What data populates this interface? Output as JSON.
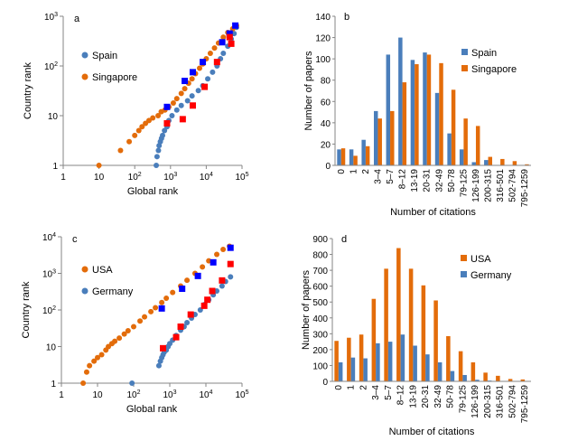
{
  "colors": {
    "blue": "#4a7ebb",
    "orange": "#e36c0a",
    "marker_blue": "#0000ff",
    "marker_red": "#ff0000",
    "axis": "#868686",
    "grid": "#d9d9d9"
  },
  "chart_data": [
    {
      "id": "a",
      "panel_label": "a",
      "type": "scatter",
      "scale": "log-log",
      "xlabel": "Global rank",
      "ylabel": "Country rank",
      "xlim": [
        1,
        100000
      ],
      "ylim": [
        1,
        1000
      ],
      "x_ticks": [
        {
          "v": 1,
          "b": "1",
          "e": ""
        },
        {
          "v": 10,
          "b": "10",
          "e": ""
        },
        {
          "v": 100,
          "b": "10",
          "e": "2"
        },
        {
          "v": 1000,
          "b": "10",
          "e": "3"
        },
        {
          "v": 10000,
          "b": "10",
          "e": "4"
        },
        {
          "v": 100000,
          "b": "10",
          "e": "5"
        }
      ],
      "y_ticks": [
        {
          "v": 1,
          "b": "1",
          "e": ""
        },
        {
          "v": 10,
          "b": "10",
          "e": ""
        },
        {
          "v": 100,
          "b": "10",
          "e": "2"
        },
        {
          "v": 1000,
          "b": "10",
          "e": "3"
        }
      ],
      "legend": "left",
      "series": [
        {
          "name": "Spain",
          "color": "#4a7ebb",
          "marker_color": "#0000ff",
          "points": [
            [
              400,
              1
            ],
            [
              420,
              1.5
            ],
            [
              460,
              2
            ],
            [
              480,
              2.5
            ],
            [
              520,
              3
            ],
            [
              560,
              3.5
            ],
            [
              600,
              4
            ],
            [
              680,
              5
            ],
            [
              800,
              6
            ],
            [
              900,
              8
            ],
            [
              1100,
              10
            ],
            [
              1500,
              13
            ],
            [
              2000,
              16
            ],
            [
              3000,
              20
            ],
            [
              4000,
              25
            ],
            [
              6000,
              32
            ],
            [
              8000,
              40
            ],
            [
              11000,
              55
            ],
            [
              15000,
              75
            ],
            [
              20000,
              100
            ],
            [
              25000,
              140
            ],
            [
              30000,
              180
            ],
            [
              40000,
              250
            ],
            [
              50000,
              350
            ],
            [
              60000,
              450
            ],
            [
              70000,
              600
            ]
          ],
          "markers": [
            [
              800,
              15
            ],
            [
              2500,
              50
            ],
            [
              4200,
              75
            ],
            [
              8000,
              120
            ],
            [
              28000,
              300
            ],
            [
              45000,
              450
            ],
            [
              65000,
              650
            ]
          ]
        },
        {
          "name": "Singapore",
          "color": "#e36c0a",
          "marker_color": "#ff0000",
          "points": [
            [
              10,
              1
            ],
            [
              40,
              2
            ],
            [
              70,
              3
            ],
            [
              100,
              4
            ],
            [
              130,
              5
            ],
            [
              160,
              6
            ],
            [
              200,
              7
            ],
            [
              250,
              8
            ],
            [
              320,
              9
            ],
            [
              450,
              10
            ],
            [
              550,
              12
            ],
            [
              700,
              13
            ],
            [
              900,
              15
            ],
            [
              1200,
              18
            ],
            [
              1500,
              22
            ],
            [
              2000,
              28
            ],
            [
              2500,
              35
            ],
            [
              3200,
              45
            ],
            [
              4000,
              55
            ],
            [
              5000,
              70
            ],
            [
              6500,
              90
            ],
            [
              8000,
              110
            ],
            [
              10000,
              140
            ],
            [
              13000,
              180
            ],
            [
              17000,
              230
            ],
            [
              22000,
              290
            ],
            [
              30000,
              380
            ],
            [
              40000,
              470
            ],
            [
              55000,
              560
            ],
            [
              70000,
              650
            ]
          ],
          "markers": [
            [
              800,
              7
            ],
            [
              2200,
              8.5
            ],
            [
              4200,
              16
            ],
            [
              9000,
              38
            ],
            [
              20000,
              120
            ],
            [
              45000,
              380
            ],
            [
              50000,
              280
            ]
          ]
        }
      ]
    },
    {
      "id": "b",
      "panel_label": "b",
      "type": "bar",
      "xlabel": "Number of citations",
      "ylabel": "Number of papers",
      "ylim": [
        0,
        140
      ],
      "y_ticks": [
        0,
        20,
        40,
        60,
        80,
        100,
        120,
        140
      ],
      "categories": [
        "0",
        "1",
        "2",
        "3–4",
        "5–7",
        "8–12",
        "13-19",
        "20-31",
        "32-49",
        "50-78",
        "79-125",
        "126-199",
        "200-315",
        "316-501",
        "502-794",
        "795-1259"
      ],
      "legend": "top-right",
      "series": [
        {
          "name": "Spain",
          "color": "#4a7ebb",
          "values": [
            15,
            15,
            24,
            51,
            104,
            120,
            99,
            106,
            68,
            30,
            15,
            3,
            5,
            0,
            0,
            0
          ]
        },
        {
          "name": "Singapore",
          "color": "#e36c0a",
          "values": [
            16,
            9,
            18,
            44,
            51,
            78,
            95,
            104,
            96,
            71,
            44,
            37,
            8,
            6,
            4,
            1
          ]
        }
      ]
    },
    {
      "id": "c",
      "panel_label": "c",
      "type": "scatter",
      "scale": "log-log",
      "xlabel": "Global rank",
      "ylabel": "Country rank",
      "xlim": [
        1,
        100000
      ],
      "ylim": [
        1,
        10000
      ],
      "x_ticks": [
        {
          "v": 1,
          "b": "1",
          "e": ""
        },
        {
          "v": 10,
          "b": "10",
          "e": ""
        },
        {
          "v": 100,
          "b": "10",
          "e": "2"
        },
        {
          "v": 1000,
          "b": "10",
          "e": "3"
        },
        {
          "v": 10000,
          "b": "10",
          "e": "4"
        },
        {
          "v": 100000,
          "b": "10",
          "e": "5"
        }
      ],
      "y_ticks": [
        {
          "v": 1,
          "b": "1",
          "e": ""
        },
        {
          "v": 10,
          "b": "10",
          "e": ""
        },
        {
          "v": 100,
          "b": "10",
          "e": "2"
        },
        {
          "v": 1000,
          "b": "10",
          "e": "3"
        },
        {
          "v": 10000,
          "b": "10",
          "e": "4"
        }
      ],
      "legend": "left",
      "series": [
        {
          "name": "USA",
          "color": "#e36c0a",
          "marker_color": "#0000ff",
          "points": [
            [
              4,
              1
            ],
            [
              5,
              2
            ],
            [
              6,
              3
            ],
            [
              8,
              4
            ],
            [
              10,
              5
            ],
            [
              13,
              6
            ],
            [
              17,
              8
            ],
            [
              20,
              10
            ],
            [
              25,
              12
            ],
            [
              30,
              14
            ],
            [
              40,
              17
            ],
            [
              55,
              22
            ],
            [
              70,
              27
            ],
            [
              100,
              35
            ],
            [
              150,
              50
            ],
            [
              200,
              65
            ],
            [
              300,
              90
            ],
            [
              400,
              115
            ],
            [
              600,
              160
            ],
            [
              800,
              210
            ],
            [
              1200,
              300
            ],
            [
              2000,
              450
            ],
            [
              3000,
              650
            ],
            [
              5000,
              1000
            ],
            [
              8000,
              1500
            ],
            [
              12000,
              2200
            ],
            [
              20000,
              3300
            ],
            [
              30000,
              4500
            ],
            [
              45000,
              5500
            ]
          ],
          "markers": [
            [
              600,
              110
            ],
            [
              2200,
              380
            ],
            [
              6000,
              850
            ],
            [
              16000,
              2000
            ],
            [
              48000,
              5000
            ]
          ]
        },
        {
          "name": "Germany",
          "color": "#4a7ebb",
          "marker_color": "#ff0000",
          "points": [
            [
              90,
              1
            ],
            [
              500,
              3
            ],
            [
              550,
              4
            ],
            [
              600,
              5
            ],
            [
              650,
              6
            ],
            [
              700,
              7
            ],
            [
              800,
              8
            ],
            [
              900,
              10
            ],
            [
              1000,
              12
            ],
            [
              1200,
              15
            ],
            [
              1500,
              20
            ],
            [
              2000,
              28
            ],
            [
              2500,
              35
            ],
            [
              3000,
              45
            ],
            [
              4000,
              60
            ],
            [
              5000,
              75
            ],
            [
              7000,
              100
            ],
            [
              9000,
              140
            ],
            [
              12000,
              190
            ],
            [
              16000,
              260
            ],
            [
              20000,
              330
            ],
            [
              28000,
              450
            ],
            [
              35000,
              600
            ],
            [
              48000,
              800
            ]
          ],
          "markers": [
            [
              650,
              9
            ],
            [
              1500,
              18
            ],
            [
              2000,
              35
            ],
            [
              3800,
              75
            ],
            [
              9000,
              130
            ],
            [
              11000,
              190
            ],
            [
              15000,
              330
            ],
            [
              28000,
              640
            ],
            [
              48000,
              1800
            ]
          ]
        }
      ]
    },
    {
      "id": "d",
      "panel_label": "d",
      "type": "bar",
      "xlabel": "Number of citations",
      "ylabel": "Number of papers",
      "ylim": [
        0,
        900
      ],
      "y_ticks": [
        0,
        100,
        200,
        300,
        400,
        500,
        600,
        700,
        800,
        900
      ],
      "categories": [
        "0",
        "1",
        "2",
        "3–4",
        "5–7",
        "8–12",
        "13-19",
        "20-31",
        "32-49",
        "50-78",
        "79-125",
        "126-199",
        "200-315",
        "316-501",
        "502-794",
        "795-1259"
      ],
      "legend": "right",
      "series": [
        {
          "name": "USA",
          "color": "#e36c0a",
          "values": [
            255,
            275,
            295,
            520,
            710,
            840,
            710,
            605,
            510,
            285,
            190,
            120,
            55,
            35,
            15,
            12
          ]
        },
        {
          "name": "Germany",
          "color": "#4a7ebb",
          "values": [
            120,
            150,
            145,
            240,
            250,
            295,
            225,
            170,
            120,
            65,
            40,
            10,
            5,
            0,
            0,
            0
          ]
        }
      ]
    }
  ]
}
